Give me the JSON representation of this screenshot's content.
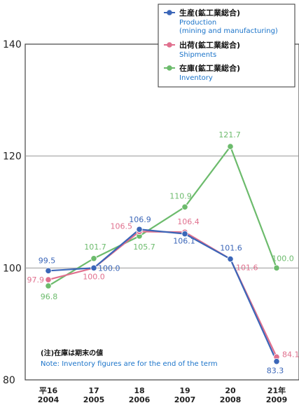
{
  "chart_data": {
    "type": "line",
    "title": "",
    "xlabel": "",
    "ylabel": "",
    "ylim": [
      80,
      140
    ],
    "yticks": [
      "80",
      "100",
      "120",
      "140"
    ],
    "categories": [
      {
        "top": "平16",
        "bottom": "2004"
      },
      {
        "top": "17",
        "bottom": "2005"
      },
      {
        "top": "18",
        "bottom": "2006"
      },
      {
        "top": "19",
        "bottom": "2007"
      },
      {
        "top": "20",
        "bottom": "2008"
      },
      {
        "top": "21年",
        "bottom": "2009"
      }
    ],
    "grid": "horizontal",
    "legend_position": "top-right",
    "series": [
      {
        "name": "生産(鉱工業総合)",
        "name_en": "Production (mining and manufacturing)",
        "name_en_lines": [
          "Production",
          "(mining and manufacturing)"
        ],
        "color": "#3b66b8",
        "values": [
          99.5,
          100.0,
          106.9,
          106.1,
          101.6,
          83.3
        ],
        "labels": [
          "99.5",
          "100.0",
          "106.9",
          "106.1",
          "101.6",
          "83.3"
        ]
      },
      {
        "name": "出荷(鉱工業総合)",
        "name_en": "Shipments",
        "name_en_lines": [
          "Shipments"
        ],
        "color": "#e0708e",
        "values": [
          97.9,
          100.0,
          106.5,
          106.4,
          101.6,
          84.1
        ],
        "labels": [
          "97.9",
          "100.0",
          "106.5",
          "106.4",
          "101.6",
          "84.1"
        ]
      },
      {
        "name": "在庫(鉱工業総合)",
        "name_en": "Inventory",
        "name_en_lines": [
          "Inventory"
        ],
        "color": "#6cbb6c",
        "values": [
          96.8,
          101.7,
          105.7,
          110.9,
          121.7,
          100.0
        ],
        "labels": [
          "96.8",
          "101.7",
          "105.7",
          "110.9",
          "121.7",
          "100.0"
        ]
      }
    ],
    "note": {
      "jp": "(注)在庫は期末の値",
      "en": "Note: Inventory figures are for the end of the term"
    }
  }
}
